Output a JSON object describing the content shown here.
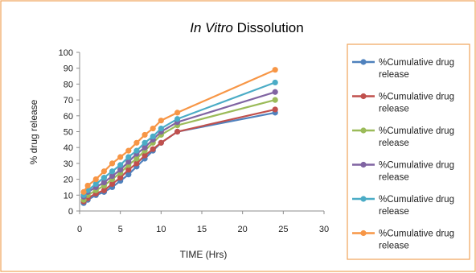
{
  "chart_data": {
    "type": "line",
    "title_italic": "In Vitro",
    "title_rest": " Dissolution",
    "xlabel": "TIME (Hrs)",
    "ylabel": "% drug release",
    "xlim": [
      0,
      30
    ],
    "ylim": [
      0,
      100
    ],
    "x_ticks": [
      0,
      5,
      10,
      15,
      20,
      25,
      30
    ],
    "y_ticks": [
      0,
      10,
      20,
      30,
      40,
      50,
      60,
      70,
      80,
      90,
      100
    ],
    "grid": false,
    "legend_position": "right",
    "x": [
      0.5,
      1,
      2,
      3,
      4,
      5,
      6,
      7,
      8,
      9,
      10,
      12,
      24
    ],
    "series": [
      {
        "name_line1": "%Cumulative drug",
        "name_line2": "release",
        "color": "#4f81bd",
        "values": [
          5,
          7,
          10,
          12,
          15,
          19,
          23,
          28,
          33,
          38,
          43,
          50,
          62
        ]
      },
      {
        "name_line1": "%Cumulative drug",
        "name_line2": "release",
        "color": "#c0504d",
        "values": [
          6,
          8,
          11,
          13,
          17,
          21,
          26,
          30,
          35,
          39,
          43,
          50,
          64
        ]
      },
      {
        "name_line1": "%Cumulative drug",
        "name_line2": "release",
        "color": "#9bbb59",
        "values": [
          7,
          10,
          13,
          16,
          20,
          24,
          29,
          33,
          38,
          43,
          48,
          54,
          70
        ]
      },
      {
        "name_line1": "%Cumulative drug",
        "name_line2": "release",
        "color": "#8064a2",
        "values": [
          9,
          12,
          15,
          18,
          22,
          26,
          31,
          36,
          40,
          45,
          50,
          56,
          75
        ]
      },
      {
        "name_line1": "%Cumulative drug",
        "name_line2": "release",
        "color": "#4bacc6",
        "values": [
          10,
          13,
          17,
          21,
          25,
          29,
          34,
          38,
          43,
          47,
          52,
          58,
          81
        ]
      },
      {
        "name_line1": "%Cumulative drug",
        "name_line2": "release",
        "color": "#f79646",
        "values": [
          12,
          16,
          20,
          25,
          30,
          34,
          38,
          43,
          48,
          52,
          57,
          62,
          89
        ]
      }
    ]
  }
}
